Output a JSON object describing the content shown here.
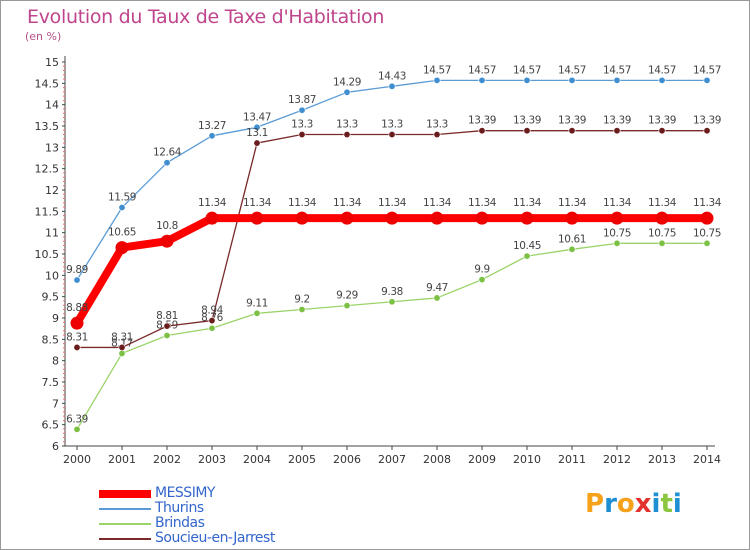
{
  "title": "Evolution du Taux de Taxe d'Habitation",
  "unit": "(en %)",
  "logo": {
    "text": "Proxiti",
    "letters": [
      "P",
      "r",
      "o",
      "x",
      "i",
      "t",
      "i"
    ],
    "colors": [
      "#f7a21b",
      "#1e8fd2",
      "#f7a21b",
      "#e2332d",
      "#1e8fd2",
      "#8cc63f",
      "#1e8fd2"
    ]
  },
  "chart_data": {
    "type": "line",
    "x": [
      "2000",
      "2001",
      "2002",
      "2003",
      "2004",
      "2005",
      "2006",
      "2007",
      "2008",
      "2009",
      "2010",
      "2011",
      "2012",
      "2013",
      "2014"
    ],
    "ylim": [
      6,
      15
    ],
    "yticks": [
      "6",
      "6.5",
      "7",
      "7.5",
      "8",
      "8.5",
      "9",
      "9.5",
      "10",
      "10.5",
      "11",
      "11.5",
      "12",
      "12.5",
      "13",
      "13.5",
      "14",
      "14.5",
      "15"
    ],
    "grid": false,
    "legend_position": "bottom-left",
    "series": [
      {
        "name": "Thurins",
        "color": "#5b9bd5",
        "marker": "#3f8fd0",
        "width": 1.3,
        "values": [
          9.89,
          11.59,
          12.64,
          13.27,
          13.47,
          13.87,
          14.29,
          14.43,
          14.57,
          14.57,
          14.57,
          14.57,
          14.57,
          14.57,
          14.57
        ],
        "labels": [
          "9.89",
          "11.59",
          "12.64",
          "13.27",
          "13.47",
          "13.87",
          "14.29",
          "14.43",
          "14.57",
          "14.57",
          "14.57",
          "14.57",
          "14.57",
          "14.57",
          "14.57"
        ]
      },
      {
        "name": "Brindas",
        "color": "#9bd36a",
        "marker": "#7cc044",
        "width": 1.3,
        "values": [
          6.39,
          8.17,
          8.59,
          8.76,
          9.11,
          9.2,
          9.29,
          9.38,
          9.47,
          9.9,
          10.45,
          10.61,
          10.75,
          10.75,
          10.75
        ],
        "labels": [
          "6.39",
          "8.17",
          "8.59",
          "8.76",
          "9.11",
          "9.2",
          "9.29",
          "9.38",
          "9.47",
          "9.9",
          "10.45",
          "10.61",
          "10.75",
          "10.75",
          "10.75"
        ]
      },
      {
        "name": "Soucieu-en-Jarrest",
        "color": "#7a2a2a",
        "marker": "#6b1c1c",
        "width": 1.3,
        "values": [
          8.31,
          8.31,
          8.81,
          8.94,
          13.1,
          13.3,
          13.3,
          13.3,
          13.3,
          13.39,
          13.39,
          13.39,
          13.39,
          13.39,
          13.39
        ],
        "labels": [
          "8.31",
          "8.31",
          "8.81",
          "8.94",
          "13.1",
          "13.3",
          "13.3",
          "13.3",
          "13.3",
          "13.39",
          "13.39",
          "13.39",
          "13.39",
          "13.39",
          "13.39"
        ]
      },
      {
        "name": "MESSIMY",
        "color": "#ff0000",
        "marker": "#ee0000",
        "width": 8,
        "values": [
          8.88,
          10.65,
          10.8,
          11.34,
          11.34,
          11.34,
          11.34,
          11.34,
          11.34,
          11.34,
          11.34,
          11.34,
          11.34,
          11.34,
          11.34
        ],
        "labels": [
          "8.88",
          "10.65",
          "10.8",
          "11.34",
          "11.34",
          "11.34",
          "11.34",
          "11.34",
          "11.34",
          "11.34",
          "11.34",
          "11.34",
          "11.34",
          "11.34",
          "11.34"
        ]
      }
    ],
    "legend": [
      {
        "name": "MESSIMY",
        "color": "#ff0000",
        "text_color": "#3366cc"
      },
      {
        "name": "Thurins",
        "color": "#5b9bd5",
        "text_color": "#3366cc"
      },
      {
        "name": "Brindas",
        "color": "#9bd36a",
        "text_color": "#3366cc"
      },
      {
        "name": "Soucieu-en-Jarrest",
        "color": "#7a2a2a",
        "text_color": "#3366cc"
      }
    ]
  }
}
